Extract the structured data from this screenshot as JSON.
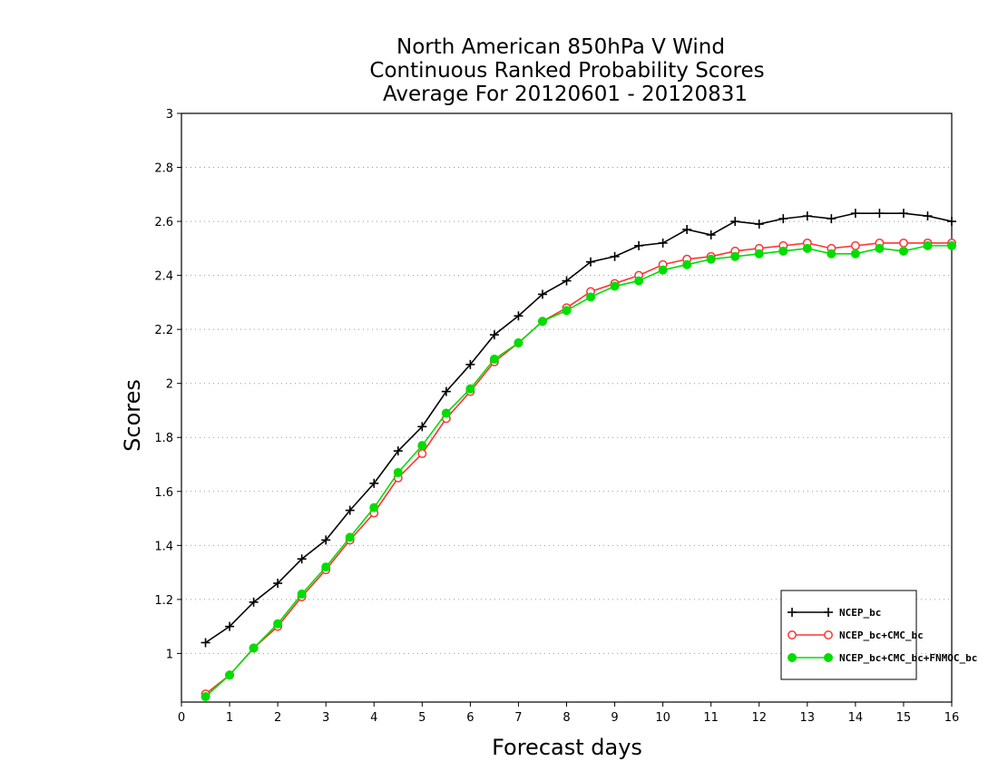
{
  "chart_data": {
    "type": "line",
    "title_lines": [
      "North American 850hPa V Wind",
      "Continuous Ranked Probability Scores",
      "Average For 20120601 - 20120831"
    ],
    "xlabel": "Forecast days",
    "ylabel": "Scores",
    "xlim": [
      0,
      16
    ],
    "ylim": [
      0.82,
      3.0
    ],
    "x_ticks": [
      0,
      1,
      2,
      3,
      4,
      5,
      6,
      7,
      8,
      9,
      10,
      11,
      12,
      13,
      14,
      15,
      16
    ],
    "y_ticks": [
      1,
      1.2,
      1.4,
      1.6,
      1.8,
      2,
      2.2,
      2.4,
      2.6,
      2.8,
      3
    ],
    "grid": "horizontal-dotted",
    "legend_position": "bottom-right",
    "x": [
      0.5,
      1,
      1.5,
      2,
      2.5,
      3,
      3.5,
      4,
      4.5,
      5,
      5.5,
      6,
      6.5,
      7,
      7.5,
      8,
      8.5,
      9,
      9.5,
      10,
      10.5,
      11,
      11.5,
      12,
      12.5,
      13,
      13.5,
      14,
      14.5,
      15,
      15.5,
      16
    ],
    "series": [
      {
        "name": "NCEP_bc",
        "color": "#000000",
        "marker": "plus",
        "values": [
          1.04,
          1.1,
          1.19,
          1.26,
          1.35,
          1.42,
          1.53,
          1.63,
          1.75,
          1.84,
          1.97,
          2.07,
          2.18,
          2.25,
          2.33,
          2.38,
          2.45,
          2.47,
          2.51,
          2.52,
          2.57,
          2.55,
          2.6,
          2.59,
          2.61,
          2.62,
          2.61,
          2.63,
          2.63,
          2.63,
          2.62,
          2.6
        ]
      },
      {
        "name": "NCEP_bc+CMC_bc",
        "color": "#ff3333",
        "marker": "open-circle",
        "values": [
          0.85,
          0.92,
          1.02,
          1.1,
          1.21,
          1.31,
          1.42,
          1.52,
          1.65,
          1.74,
          1.87,
          1.97,
          2.08,
          2.15,
          2.23,
          2.28,
          2.34,
          2.37,
          2.4,
          2.44,
          2.46,
          2.47,
          2.49,
          2.5,
          2.51,
          2.52,
          2.5,
          2.51,
          2.52,
          2.52,
          2.52,
          2.52
        ]
      },
      {
        "name": "NCEP_bc+CMC_bc+FNMOC_bc",
        "color": "#00dd00",
        "marker": "filled-circle",
        "values": [
          0.84,
          0.92,
          1.02,
          1.11,
          1.22,
          1.32,
          1.43,
          1.54,
          1.67,
          1.77,
          1.89,
          1.98,
          2.09,
          2.15,
          2.23,
          2.27,
          2.32,
          2.36,
          2.38,
          2.42,
          2.44,
          2.46,
          2.47,
          2.48,
          2.49,
          2.5,
          2.48,
          2.48,
          2.5,
          2.49,
          2.51,
          2.51
        ]
      }
    ]
  }
}
